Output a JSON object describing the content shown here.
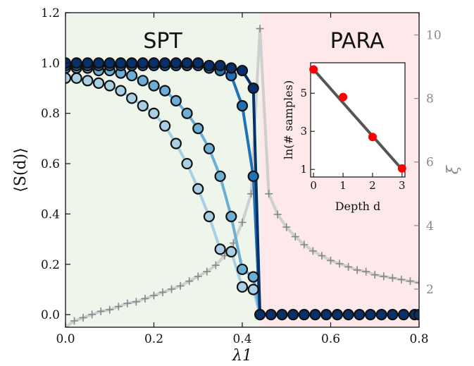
{
  "chart_data": [
    {
      "type": "line",
      "title": "",
      "xlabel": "λ1",
      "ylabel": "⟨S(d)⟩",
      "y2label": "ξ",
      "xlim": [
        0.0,
        0.8
      ],
      "ylim": [
        -0.05,
        1.2
      ],
      "y2lim": [
        0.8,
        10.7
      ],
      "xticks": [
        "0.0",
        "0.2",
        "0.4",
        "0.6",
        "0.8"
      ],
      "yticks": [
        "0.0",
        "0.2",
        "0.4",
        "0.6",
        "0.8",
        "1.0",
        "1.2"
      ],
      "y2ticks": [
        "2",
        "4",
        "6",
        "8",
        "10"
      ],
      "regions": [
        {
          "label": "SPT",
          "x_range": [
            0.0,
            0.44
          ],
          "color": "#eef5ea"
        },
        {
          "label": "PARA",
          "x_range": [
            0.44,
            0.8
          ],
          "color": "#fde9e9"
        }
      ],
      "transition_x": 0.44,
      "series": [
        {
          "depth": 0,
          "color": "#08306b",
          "x": [
            0.0,
            0.025,
            0.05,
            0.075,
            0.1,
            0.125,
            0.15,
            0.175,
            0.2,
            0.225,
            0.25,
            0.275,
            0.3,
            0.325,
            0.35,
            0.375,
            0.4,
            0.425
          ],
          "values": [
            1.0,
            1.0,
            1.0,
            1.0,
            1.0,
            1.0,
            1.0,
            1.0,
            1.0,
            1.0,
            1.0,
            1.0,
            1.0,
            0.99,
            0.99,
            0.98,
            0.97,
            0.9
          ]
        },
        {
          "depth": 1,
          "color": "#2171b5",
          "x": [
            0.0,
            0.025,
            0.05,
            0.075,
            0.1,
            0.125,
            0.15,
            0.175,
            0.2,
            0.225,
            0.25,
            0.275,
            0.3,
            0.325,
            0.35,
            0.375,
            0.4,
            0.425
          ],
          "values": [
            0.99,
            0.99,
            0.99,
            0.99,
            0.99,
            0.99,
            0.99,
            0.99,
            0.99,
            0.99,
            0.99,
            0.99,
            0.99,
            0.98,
            0.97,
            0.95,
            0.83,
            0.55
          ]
        },
        {
          "depth": 2,
          "color": "#6baed6",
          "x": [
            0.0,
            0.025,
            0.05,
            0.075,
            0.1,
            0.125,
            0.15,
            0.175,
            0.2,
            0.225,
            0.25,
            0.275,
            0.3,
            0.325,
            0.35,
            0.375,
            0.4,
            0.425
          ],
          "values": [
            0.98,
            0.98,
            0.98,
            0.97,
            0.97,
            0.96,
            0.95,
            0.93,
            0.91,
            0.89,
            0.85,
            0.8,
            0.74,
            0.66,
            0.55,
            0.39,
            0.18,
            0.15
          ]
        },
        {
          "depth": 3,
          "color": "#a9cfe5",
          "x": [
            0.0,
            0.025,
            0.05,
            0.075,
            0.1,
            0.125,
            0.15,
            0.175,
            0.2,
            0.225,
            0.25,
            0.275,
            0.3,
            0.325,
            0.35,
            0.375,
            0.4,
            0.425
          ],
          "values": [
            0.94,
            0.94,
            0.93,
            0.92,
            0.91,
            0.89,
            0.86,
            0.83,
            0.8,
            0.75,
            0.68,
            0.6,
            0.5,
            0.39,
            0.26,
            0.25,
            0.11,
            0.1
          ]
        }
      ],
      "para_series": {
        "x": [
          0.44,
          0.465,
          0.49,
          0.515,
          0.54,
          0.565,
          0.59,
          0.615,
          0.64,
          0.665,
          0.69,
          0.715,
          0.74,
          0.765,
          0.79,
          0.8
        ],
        "value": 0.0
      },
      "xi_series": {
        "color": "#aaaaaa",
        "axis": "right",
        "x": [
          0.0,
          0.02,
          0.04,
          0.06,
          0.08,
          0.1,
          0.12,
          0.14,
          0.16,
          0.18,
          0.2,
          0.22,
          0.24,
          0.26,
          0.28,
          0.3,
          0.32,
          0.34,
          0.36,
          0.38,
          0.4,
          0.42,
          0.44,
          0.46,
          0.48,
          0.5,
          0.52,
          0.54,
          0.56,
          0.58,
          0.6,
          0.62,
          0.64,
          0.66,
          0.68,
          0.7,
          0.72,
          0.74,
          0.76,
          0.78,
          0.8
        ],
        "values": [
          0.8,
          1.0,
          1.1,
          1.2,
          1.3,
          1.35,
          1.45,
          1.55,
          1.6,
          1.7,
          1.8,
          1.9,
          2.0,
          2.1,
          2.25,
          2.4,
          2.55,
          2.75,
          3.05,
          3.45,
          4.1,
          5.0,
          10.2,
          5.0,
          4.35,
          3.95,
          3.65,
          3.4,
          3.2,
          3.05,
          2.9,
          2.8,
          2.7,
          2.6,
          2.55,
          2.45,
          2.4,
          2.35,
          2.3,
          2.25,
          2.2
        ]
      }
    },
    {
      "type": "scatter",
      "title": "",
      "xlabel": "Depth d",
      "ylabel": "ln(# samples)",
      "xlim": [
        -0.1,
        3.1
      ],
      "ylim": [
        0.6,
        6.6
      ],
      "xticks": [
        "0",
        "1",
        "2",
        "3"
      ],
      "yticks": [
        "1",
        "3",
        "5"
      ],
      "points": {
        "x": [
          0,
          1,
          2,
          3
        ],
        "values": [
          6.25,
          4.8,
          2.7,
          1.05
        ],
        "color": "#ff0000"
      },
      "fit": {
        "x": [
          0,
          3
        ],
        "values": [
          6.25,
          1.0
        ],
        "color": "#555555"
      }
    }
  ]
}
